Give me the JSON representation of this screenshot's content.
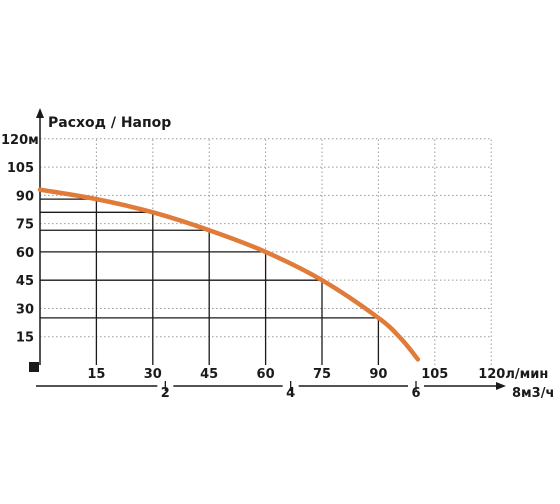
{
  "chart_data": {
    "type": "line",
    "title": "Расход / Напор",
    "y_unit_label": "м",
    "x_unit_label": "л/мин",
    "x2_unit_label": "м3/ч",
    "xlim": [
      0,
      120
    ],
    "ylim": [
      0,
      120
    ],
    "x_ticks": [
      15,
      30,
      45,
      60,
      75,
      90,
      105,
      120
    ],
    "y_ticks": [
      15,
      30,
      45,
      60,
      75,
      90,
      105,
      120
    ],
    "x2_ticks": [
      2,
      4,
      6,
      8
    ],
    "grid": true,
    "curve_color": "#e07b39",
    "series": [
      {
        "x": [
          0,
          15,
          30,
          45,
          60,
          75,
          90,
          96,
          100.5
        ],
        "y": [
          93,
          88,
          81,
          71.5,
          60,
          45,
          25,
          14,
          3
        ]
      }
    ],
    "drop_lines": [
      {
        "x": 15,
        "y": 88
      },
      {
        "x": 30,
        "y": 81
      },
      {
        "x": 45,
        "y": 71.5
      },
      {
        "x": 60,
        "y": 60
      },
      {
        "x": 75,
        "y": 45
      },
      {
        "x": 90,
        "y": 25
      }
    ]
  }
}
